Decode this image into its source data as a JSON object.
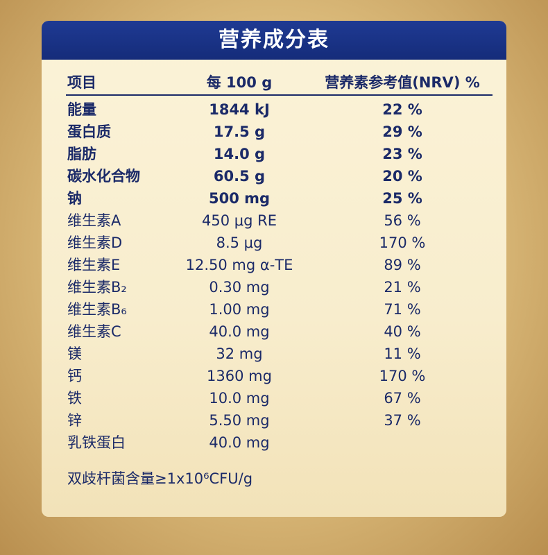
{
  "title": "营养成分表",
  "table": {
    "header": [
      "项目",
      "每 100 g",
      "营养素参考值(NRV) %"
    ],
    "rows": [
      [
        "能量",
        "1844 kJ",
        "22 %"
      ],
      [
        "蛋白质",
        "17.5 g",
        "29 %"
      ],
      [
        "脂肪",
        "14.0 g",
        "23 %"
      ],
      [
        "碳水化合物",
        "60.5 g",
        "20 %"
      ],
      [
        "钠",
        "500 mg",
        "25 %"
      ],
      [
        "维生素A",
        "450 μg RE",
        "56 %"
      ],
      [
        "维生素D",
        "8.5 μg",
        "170 %"
      ],
      [
        "维生素E",
        "12.50 mg α-TE",
        "89 %"
      ],
      [
        "维生素B₂",
        "0.30 mg",
        "21 %"
      ],
      [
        "维生素B₆",
        "1.00 mg",
        "71 %"
      ],
      [
        "维生素C",
        "40.0 mg",
        "40 %"
      ],
      [
        "镁",
        "32 mg",
        "11 %"
      ],
      [
        "钙",
        "1360 mg",
        "170 %"
      ],
      [
        "铁",
        "10.0 mg",
        "67 %"
      ],
      [
        "锌",
        "5.50 mg",
        "37 %"
      ],
      [
        "乳铁蛋白",
        "40.0 mg"
      ]
    ],
    "bold_rows": 5
  },
  "footnote": "双歧杆菌含量≥1x10⁶CFU/g"
}
